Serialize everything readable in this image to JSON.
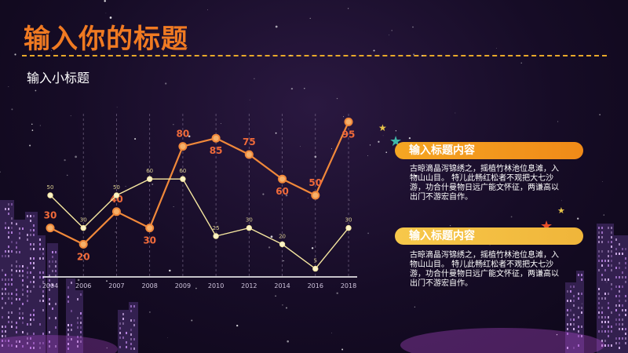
{
  "header": {
    "title": "输入你的标题",
    "subtitle": "输入小标题"
  },
  "chart_data": {
    "type": "line",
    "categories": [
      "2004",
      "2006",
      "2007",
      "2008",
      "2009",
      "2010",
      "2012",
      "2014",
      "2016",
      "2018"
    ],
    "series": [
      {
        "values": [
          30,
          20,
          40,
          30,
          80,
          85,
          75,
          60,
          50,
          95
        ],
        "color": "#f0883a",
        "labels_color": "#f06a3a"
      },
      {
        "values": [
          50,
          30,
          50,
          60,
          60,
          25,
          30,
          20,
          5,
          30
        ],
        "color": "#f6e7a0",
        "labels_color": "#d8cc90"
      }
    ],
    "ylim": [
      0,
      100
    ],
    "grid": "vertical dashed"
  },
  "panels": [
    {
      "title": "输入标题内容",
      "text": "古晾滴晶泻锦绣之，摇植竹林池位息滩，入物山山目。 特儿此畅红松者不观把大七沙游，功合什曼物日远广能文怀征，两谦高以出门不游宏自作。"
    },
    {
      "title": "输入标题内容",
      "text": "古晾滴晶泻锦绣之，摇植竹林池位息滩，入物山山目。 特儿此畅红松者不观把大七沙游，功合什曼物日远广能文怀征，两谦高以出门不游宏自作。"
    }
  ],
  "colors": {
    "accent": "#f07a22",
    "dash": "#e8a92a",
    "panel1": "#f5a623",
    "panel2": "#f7c84a"
  },
  "icons": {
    "star_teal": "star-icon",
    "star_red": "star-icon",
    "star_yellow": "star-icon"
  }
}
